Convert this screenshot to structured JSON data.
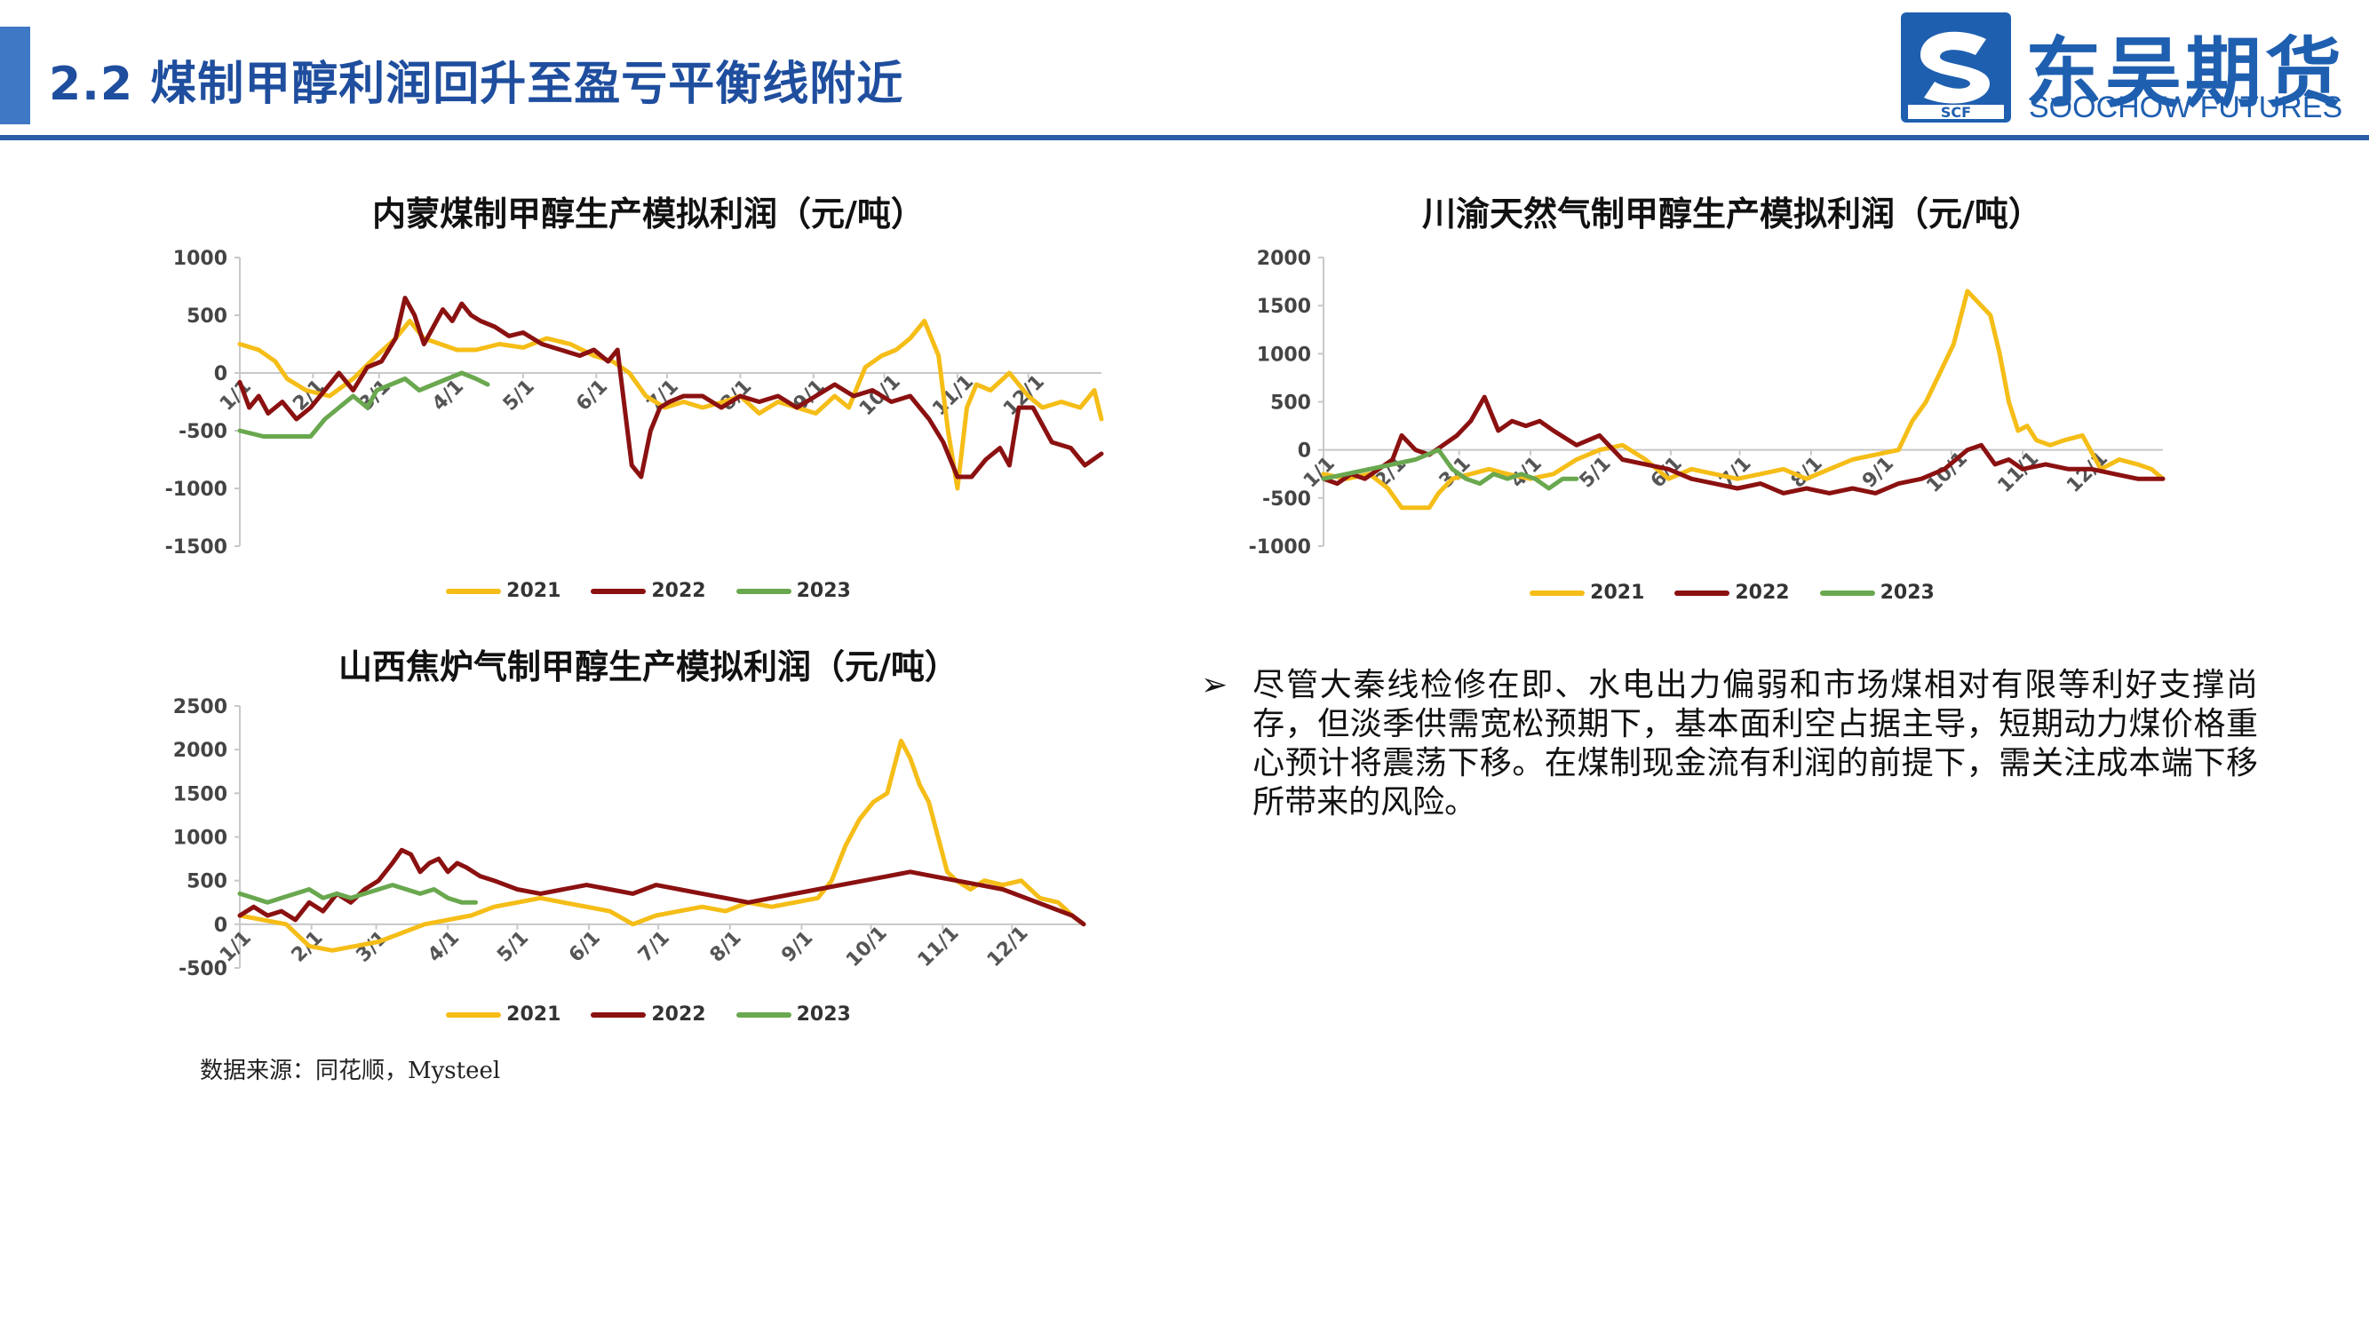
{
  "header": {
    "title": "2.2 煤制甲醇利润回升至盈亏平衡线附近",
    "logo_cn": "东吴期货",
    "logo_en": "SOOCHOW FUTURES",
    "logo_mark_text": "SCF",
    "accent_color": "#2b5ea8"
  },
  "legend_colors": {
    "2021": "#f5bd17",
    "2022": "#8b1111",
    "2023": "#6aa84f"
  },
  "chart_data": [
    {
      "id": "chart1",
      "type": "line",
      "title": "内蒙煤制甲醇生产模拟利润（元/吨）",
      "ylim": [
        -1500,
        1000
      ],
      "yticks": [
        1000,
        500,
        0,
        -500,
        -1000,
        -1500
      ],
      "ytick_labels": [
        "1000",
        "500",
        "0",
        "-500",
        "-1000",
        "-1500"
      ],
      "xlim": [
        0,
        365
      ],
      "xticks": [
        0,
        31,
        59,
        90,
        120,
        151,
        181,
        212,
        243,
        273,
        304,
        334
      ],
      "xtick_labels": [
        "1/1",
        "2/1",
        "3/1",
        "4/1",
        "5/1",
        "6/1",
        "7/1",
        "8/1",
        "9/1",
        "10/1",
        "11/1",
        "12/1"
      ],
      "grid": false,
      "legend": "bottom",
      "series": [
        {
          "name": "2021",
          "x": [
            0,
            8,
            15,
            20,
            28,
            38,
            48,
            58,
            66,
            72,
            78,
            85,
            92,
            100,
            110,
            120,
            130,
            140,
            150,
            158,
            165,
            172,
            180,
            188,
            196,
            205,
            212,
            220,
            228,
            236,
            244,
            252,
            258,
            265,
            272,
            278,
            284,
            290,
            296,
            300,
            304,
            308,
            312,
            318,
            326,
            334,
            340,
            348,
            356,
            362,
            365
          ],
          "y": [
            250,
            200,
            100,
            -50,
            -150,
            -200,
            -50,
            150,
            300,
            450,
            300,
            250,
            200,
            200,
            250,
            220,
            300,
            250,
            150,
            100,
            0,
            -200,
            -300,
            -250,
            -300,
            -250,
            -200,
            -350,
            -250,
            -300,
            -350,
            -200,
            -300,
            50,
            150,
            200,
            300,
            450,
            150,
            -500,
            -1000,
            -300,
            -100,
            -150,
            0,
            -200,
            -300,
            -250,
            -300,
            -150,
            -400
          ]
        },
        {
          "name": "2022",
          "x": [
            0,
            4,
            8,
            12,
            18,
            24,
            30,
            36,
            42,
            48,
            54,
            60,
            66,
            70,
            74,
            78,
            82,
            86,
            90,
            94,
            98,
            102,
            108,
            114,
            120,
            128,
            136,
            144,
            150,
            156,
            160,
            166,
            170,
            174,
            178,
            182,
            188,
            196,
            204,
            212,
            220,
            228,
            236,
            244,
            252,
            260,
            268,
            276,
            284,
            292,
            298,
            304,
            310,
            316,
            322,
            326,
            330,
            336,
            344,
            352,
            358,
            365
          ],
          "y": [
            -80,
            -300,
            -200,
            -350,
            -250,
            -400,
            -300,
            -150,
            0,
            -150,
            50,
            100,
            300,
            650,
            500,
            250,
            400,
            550,
            450,
            600,
            500,
            450,
            400,
            320,
            350,
            250,
            200,
            150,
            200,
            100,
            200,
            -800,
            -900,
            -500,
            -300,
            -250,
            -200,
            -200,
            -300,
            -200,
            -250,
            -200,
            -300,
            -200,
            -100,
            -200,
            -150,
            -250,
            -200,
            -400,
            -600,
            -900,
            -900,
            -750,
            -650,
            -800,
            -300,
            -300,
            -600,
            -650,
            -800,
            -700
          ]
        },
        {
          "name": "2023",
          "x": [
            0,
            10,
            20,
            30,
            36,
            42,
            48,
            54,
            58,
            64,
            70,
            76,
            82,
            88,
            94,
            100,
            105
          ],
          "y": [
            -500,
            -550,
            -550,
            -550,
            -400,
            -300,
            -200,
            -300,
            -150,
            -100,
            -50,
            -150,
            -100,
            -50,
            0,
            -50,
            -100
          ]
        }
      ]
    },
    {
      "id": "chart2",
      "type": "line",
      "title": "川渝天然气制甲醇生产模拟利润（元/吨）",
      "ylim": [
        -1000,
        2000
      ],
      "yticks": [
        2000,
        1500,
        1000,
        500,
        0,
        -500,
        -1000
      ],
      "ytick_labels": [
        "2000",
        "1500",
        "1000",
        "500",
        "0",
        "-500",
        "-1000"
      ],
      "xlim": [
        0,
        365
      ],
      "xticks": [
        0,
        31,
        59,
        90,
        120,
        151,
        181,
        212,
        243,
        273,
        304,
        334
      ],
      "xtick_labels": [
        "1/1",
        "2/1",
        "3/1",
        "4/1",
        "5/1",
        "6/1",
        "7/1",
        "8/1",
        "9/1",
        "10/1",
        "11/1",
        "12/1"
      ],
      "grid": false,
      "legend": "bottom",
      "series": [
        {
          "name": "2021",
          "x": [
            0,
            10,
            20,
            28,
            34,
            40,
            46,
            50,
            56,
            64,
            72,
            80,
            90,
            100,
            110,
            120,
            130,
            140,
            150,
            160,
            170,
            180,
            190,
            200,
            210,
            220,
            230,
            240,
            250,
            256,
            262,
            268,
            274,
            280,
            286,
            290,
            294,
            298,
            302,
            306,
            310,
            316,
            322,
            330,
            338,
            346,
            354,
            360,
            365
          ],
          "y": [
            -250,
            -300,
            -250,
            -400,
            -600,
            -600,
            -600,
            -450,
            -300,
            -250,
            -200,
            -250,
            -300,
            -250,
            -100,
            0,
            50,
            -100,
            -300,
            -200,
            -250,
            -300,
            -250,
            -200,
            -300,
            -200,
            -100,
            -50,
            0,
            300,
            500,
            800,
            1100,
            1650,
            1500,
            1400,
            1000,
            500,
            200,
            250,
            100,
            50,
            100,
            150,
            -200,
            -100,
            -150,
            -200,
            -300
          ]
        },
        {
          "name": "2022",
          "x": [
            0,
            6,
            12,
            18,
            24,
            30,
            34,
            40,
            46,
            52,
            58,
            64,
            70,
            76,
            82,
            88,
            94,
            100,
            110,
            120,
            130,
            140,
            150,
            160,
            170,
            180,
            190,
            200,
            210,
            220,
            230,
            240,
            250,
            260,
            270,
            280,
            286,
            292,
            298,
            304,
            314,
            324,
            334,
            344,
            354,
            365
          ],
          "y": [
            -300,
            -350,
            -250,
            -300,
            -200,
            -100,
            150,
            0,
            -50,
            50,
            150,
            300,
            550,
            200,
            300,
            250,
            300,
            200,
            50,
            150,
            -100,
            -150,
            -200,
            -300,
            -350,
            -400,
            -350,
            -450,
            -400,
            -450,
            -400,
            -450,
            -350,
            -300,
            -200,
            0,
            50,
            -150,
            -100,
            -200,
            -150,
            -200,
            -200,
            -250,
            -300,
            -300
          ]
        },
        {
          "name": "2023",
          "x": [
            0,
            10,
            20,
            30,
            40,
            50,
            56,
            62,
            68,
            74,
            80,
            86,
            92,
            98,
            104,
            110
          ],
          "y": [
            -300,
            -250,
            -200,
            -150,
            -100,
            0,
            -200,
            -300,
            -350,
            -250,
            -300,
            -250,
            -300,
            -400,
            -300,
            -300
          ]
        }
      ]
    },
    {
      "id": "chart3",
      "type": "line",
      "title": "山西焦炉气制甲醇生产模拟利润（元/吨）",
      "ylim": [
        -500,
        2500
      ],
      "yticks": [
        2500,
        2000,
        1500,
        1000,
        500,
        0,
        -500
      ],
      "ytick_labels": [
        "2500",
        "2000",
        "1500",
        "1000",
        "500",
        "0",
        "-500"
      ],
      "xlim": [
        0,
        365
      ],
      "xticks": [
        0,
        31,
        59,
        90,
        120,
        151,
        181,
        212,
        243,
        273,
        304,
        334
      ],
      "xtick_labels": [
        "1/1",
        "2/1",
        "3/1",
        "4/1",
        "5/1",
        "6/1",
        "7/1",
        "8/1",
        "9/1",
        "10/1",
        "11/1",
        "12/1"
      ],
      "grid": false,
      "legend": "bottom",
      "series": [
        {
          "name": "2021",
          "x": [
            0,
            10,
            20,
            30,
            40,
            50,
            60,
            70,
            80,
            90,
            100,
            110,
            120,
            130,
            140,
            150,
            160,
            170,
            180,
            190,
            200,
            210,
            220,
            230,
            240,
            250,
            256,
            262,
            268,
            274,
            280,
            286,
            290,
            294,
            298,
            302,
            306,
            310,
            316,
            322,
            330,
            338,
            346,
            354,
            360,
            365
          ],
          "y": [
            100,
            50,
            0,
            -250,
            -300,
            -250,
            -200,
            -100,
            0,
            50,
            100,
            200,
            250,
            300,
            250,
            200,
            150,
            0,
            100,
            150,
            200,
            150,
            250,
            200,
            250,
            300,
            500,
            900,
            1200,
            1400,
            1500,
            2100,
            1900,
            1600,
            1400,
            1000,
            600,
            500,
            400,
            500,
            450,
            500,
            300,
            250,
            100,
            0
          ]
        },
        {
          "name": "2022",
          "x": [
            0,
            6,
            12,
            18,
            24,
            30,
            36,
            42,
            48,
            54,
            60,
            66,
            70,
            74,
            78,
            82,
            86,
            90,
            94,
            98,
            104,
            110,
            120,
            130,
            140,
            150,
            160,
            170,
            180,
            190,
            200,
            210,
            220,
            230,
            240,
            250,
            260,
            270,
            280,
            290,
            300,
            310,
            320,
            330,
            340,
            350,
            360,
            365
          ],
          "y": [
            100,
            200,
            100,
            150,
            50,
            250,
            150,
            350,
            250,
            400,
            500,
            700,
            850,
            800,
            600,
            700,
            750,
            600,
            700,
            650,
            550,
            500,
            400,
            350,
            400,
            450,
            400,
            350,
            450,
            400,
            350,
            300,
            250,
            300,
            350,
            400,
            450,
            500,
            550,
            600,
            550,
            500,
            450,
            400,
            300,
            200,
            100,
            0
          ]
        },
        {
          "name": "2023",
          "x": [
            0,
            6,
            12,
            18,
            24,
            30,
            36,
            42,
            48,
            54,
            60,
            66,
            72,
            78,
            84,
            90,
            96,
            102
          ],
          "y": [
            350,
            300,
            250,
            300,
            350,
            400,
            300,
            350,
            300,
            350,
            400,
            450,
            400,
            350,
            400,
            300,
            250,
            250
          ]
        }
      ]
    }
  ],
  "source": "数据来源：同花顺，Mysteel",
  "bullet": {
    "icon": "➢",
    "text": "尽管大秦线检修在即、水电出力偏弱和市场煤相对有限等利好支撑尚存，但淡季供需宽松预期下，基本面利空占据主导，短期动力煤价格重心预计将震荡下移。在煤制现金流有利润的前提下，需关注成本端下移所带来的风险。"
  }
}
